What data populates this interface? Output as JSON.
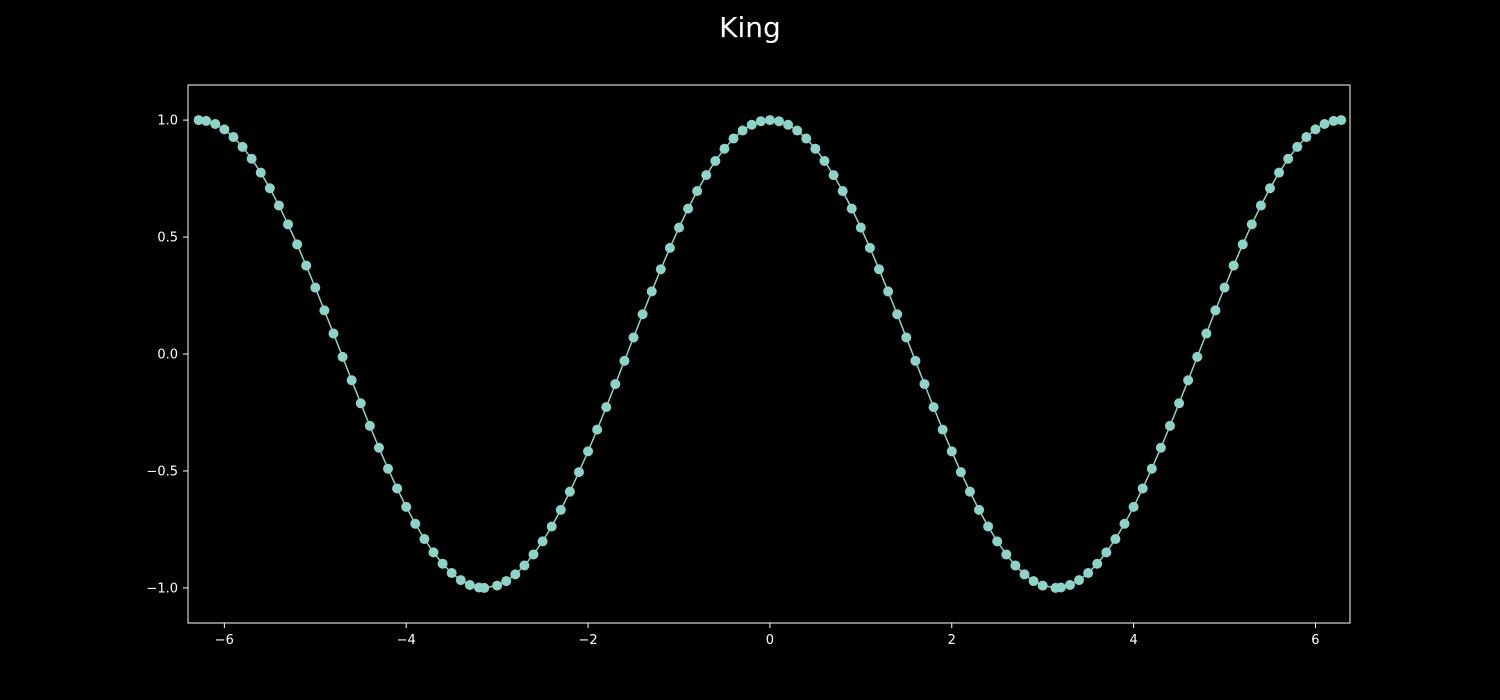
{
  "chart_data": {
    "type": "line",
    "title": "King",
    "xlabel": "",
    "ylabel": "",
    "xlim": [
      -6.4,
      6.38
    ],
    "ylim": [
      -1.15,
      1.15
    ],
    "grid": false,
    "xticks": [
      -6,
      -4,
      -2,
      0,
      2,
      4,
      6
    ],
    "xtick_labels": [
      "−6",
      "−4",
      "−2",
      "0",
      "2",
      "4",
      "6"
    ],
    "yticks": [
      1.0,
      0.5,
      0.0,
      -0.5,
      -1.0
    ],
    "ytick_labels": [
      "1.0",
      "0.5",
      "0.0",
      "−0.5",
      "−1.0"
    ],
    "function": "cos(x)",
    "series": [
      {
        "color": "#8dd3c7",
        "x": [
          -6.283,
          -6.2,
          -6.1,
          -6.0,
          -5.9,
          -5.8,
          -5.7,
          -5.6,
          -5.5,
          -5.4,
          -5.3,
          -5.2,
          -5.1,
          -5.0,
          -4.9,
          -4.8,
          -4.7,
          -4.6,
          -4.5,
          -4.4,
          -4.3,
          -4.2,
          -4.1,
          -4.0,
          -3.9,
          -3.8,
          -3.7,
          -3.6,
          -3.5,
          -3.4,
          -3.3,
          -3.2,
          -3.1416,
          -3.0,
          -2.9,
          -2.8,
          -2.7,
          -2.6,
          -2.5,
          -2.4,
          -2.3,
          -2.2,
          -2.1,
          -2.0,
          -1.9,
          -1.8,
          -1.7,
          -1.6,
          -1.5,
          -1.4,
          -1.3,
          -1.2,
          -1.1,
          -1.0,
          -0.9,
          -0.8,
          -0.7,
          -0.6,
          -0.5,
          -0.4,
          -0.3,
          -0.2,
          -0.1,
          0.0,
          0.1,
          0.2,
          0.3,
          0.4,
          0.5,
          0.6,
          0.7,
          0.8,
          0.9,
          1.0,
          1.1,
          1.2,
          1.3,
          1.4,
          1.5,
          1.6,
          1.7,
          1.8,
          1.9,
          2.0,
          2.1,
          2.2,
          2.3,
          2.4,
          2.5,
          2.6,
          2.7,
          2.8,
          2.9,
          3.0,
          3.1416,
          3.2,
          3.3,
          3.4,
          3.5,
          3.6,
          3.7,
          3.8,
          3.9,
          4.0,
          4.1,
          4.2,
          4.3,
          4.4,
          4.5,
          4.6,
          4.7,
          4.8,
          4.9,
          5.0,
          5.1,
          5.2,
          5.3,
          5.4,
          5.5,
          5.6,
          5.7,
          5.8,
          5.9,
          6.0,
          6.1,
          6.2,
          6.283
        ],
        "y": [
          1.0,
          0.9965,
          0.9833,
          0.9602,
          0.9275,
          0.8855,
          0.8347,
          0.7756,
          0.7087,
          0.6347,
          0.5544,
          0.4685,
          0.378,
          0.2837,
          0.1865,
          0.0875,
          -0.0124,
          -0.1122,
          -0.2108,
          -0.3073,
          -0.4008,
          -0.4903,
          -0.5748,
          -0.6536,
          -0.7259,
          -0.791,
          -0.8481,
          -0.8968,
          -0.9365,
          -0.9668,
          -0.9875,
          -0.9983,
          -1.0,
          -0.99,
          -0.971,
          -0.9422,
          -0.9041,
          -0.8569,
          -0.8011,
          -0.7374,
          -0.6663,
          -0.5885,
          -0.5048,
          -0.4161,
          -0.3233,
          -0.2272,
          -0.1288,
          -0.0292,
          0.0707,
          0.17,
          0.2675,
          0.3624,
          0.4536,
          0.5403,
          0.6216,
          0.6967,
          0.7648,
          0.8253,
          0.8776,
          0.9211,
          0.9553,
          0.9801,
          0.995,
          1.0,
          0.995,
          0.9801,
          0.9553,
          0.9211,
          0.8776,
          0.8253,
          0.7648,
          0.6967,
          0.6216,
          0.5403,
          0.4536,
          0.3624,
          0.2675,
          0.17,
          0.0707,
          -0.0292,
          -0.1288,
          -0.2272,
          -0.3233,
          -0.4161,
          -0.5048,
          -0.5885,
          -0.6663,
          -0.7374,
          -0.8011,
          -0.8569,
          -0.9041,
          -0.9422,
          -0.971,
          -0.99,
          -1.0,
          -0.9983,
          -0.9875,
          -0.9668,
          -0.9365,
          -0.8968,
          -0.8481,
          -0.791,
          -0.7259,
          -0.6536,
          -0.5748,
          -0.4903,
          -0.4008,
          -0.3073,
          -0.2108,
          -0.1122,
          -0.0124,
          0.0875,
          0.1865,
          0.2837,
          0.378,
          0.4685,
          0.5544,
          0.6347,
          0.7087,
          0.7756,
          0.8347,
          0.8855,
          0.9275,
          0.9602,
          0.9833,
          0.9965,
          1.0
        ]
      }
    ]
  }
}
